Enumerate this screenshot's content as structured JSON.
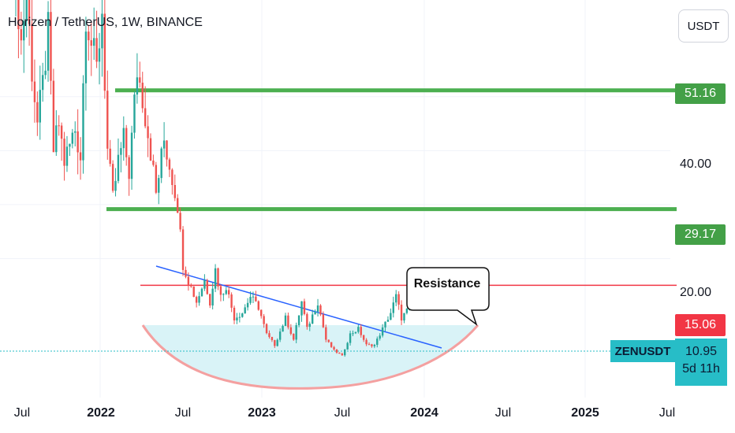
{
  "header": {
    "title": "Horizen / TetherUS, 1W, BINANCE",
    "currency_button": "USDT"
  },
  "chart_data": {
    "type": "candlestick",
    "title": "Horizen / TetherUS, 1W, BINANCE",
    "symbol": "ZENUSDT",
    "y_axis_ticks": [
      "40.00",
      "20.00"
    ],
    "x_axis_ticks": [
      {
        "label": "Jul",
        "bold": false
      },
      {
        "label": "2022",
        "bold": true
      },
      {
        "label": "Jul",
        "bold": false
      },
      {
        "label": "2023",
        "bold": true
      },
      {
        "label": "Jul",
        "bold": false
      },
      {
        "label": "2024",
        "bold": true
      },
      {
        "label": "Jul",
        "bold": false
      },
      {
        "label": "2025",
        "bold": true
      },
      {
        "label": "Jul",
        "bold": false
      }
    ],
    "horizontal_levels": [
      {
        "price": 51.16,
        "label": "51.16",
        "color": "#4caf50"
      },
      {
        "price": 29.17,
        "label": "29.17",
        "color": "#4caf50"
      },
      {
        "price": 15.06,
        "label": "15.06",
        "color": "#f23645"
      }
    ],
    "current_price": {
      "label": "10.95",
      "countdown": "5d 11h",
      "color": "#27bdc7"
    },
    "annotations": [
      {
        "type": "callout",
        "text": "Resistance"
      },
      {
        "type": "trendline",
        "name": "descending resistance",
        "color": "#2962ff"
      },
      {
        "type": "cup",
        "name": "rounded bottom",
        "color": "#e57373"
      }
    ],
    "colors": {
      "up": "#26a69a",
      "down": "#ef5350",
      "shade": "#d9f3f7"
    }
  }
}
